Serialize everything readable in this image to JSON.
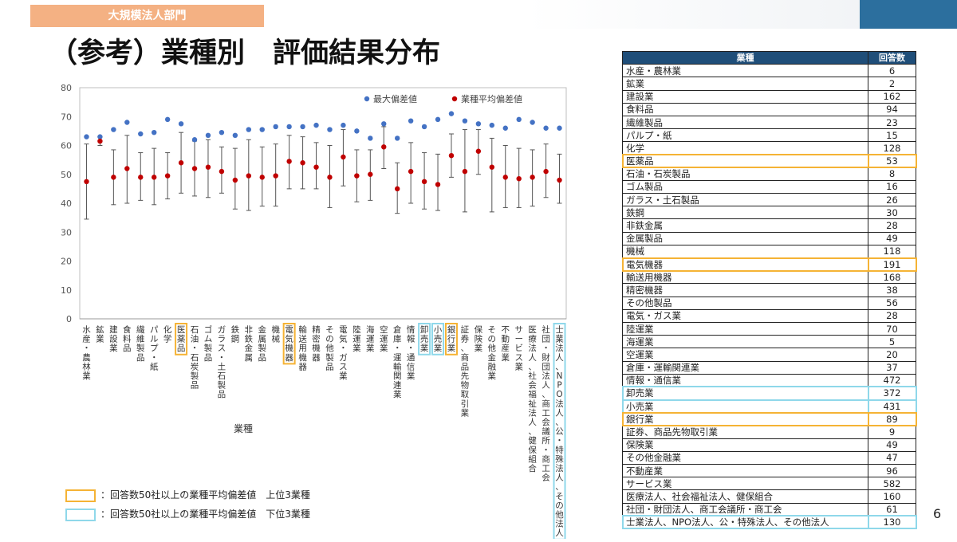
{
  "header": {
    "dept_tag": "大規模法人部門",
    "title": "（参考）業種別　評価結果分布"
  },
  "colors": {
    "max_dot": "#4472c4",
    "avg_dot": "#c00000",
    "orange_box": "#f5b335",
    "blue_box": "#8fd8ea",
    "table_header": "#1f4e79"
  },
  "chart_data": {
    "type": "scatter",
    "title": "",
    "xlabel": "業種",
    "ylabel": "",
    "ylim": [
      0,
      80
    ],
    "yticks": [
      0,
      10,
      20,
      30,
      40,
      50,
      60,
      70,
      80
    ],
    "grid": false,
    "legend_position": "top-right",
    "categories": [
      "水産・農林業",
      "鉱業",
      "建設業",
      "食料品",
      "繊維製品",
      "パルプ・紙",
      "化学",
      "医薬品",
      "石油・石炭製品",
      "ゴム製品",
      "ガラス・土石製品",
      "鉄鋼",
      "非鉄金属",
      "金属製品",
      "機械",
      "電気機器",
      "輸送用機器",
      "精密機器",
      "その他製品",
      "電気・ガス業",
      "陸運業",
      "海運業",
      "空運業",
      "倉庫・運輸関連業",
      "情報・通信業",
      "卸売業",
      "小売業",
      "銀行業",
      "証券、商品先物取引業",
      "保険業",
      "その他金融業",
      "不動産業",
      "サービス業",
      "医療法人、社会福祉法人、健保組合",
      "社団・財団法人、商工会議所・商工会",
      "士業法人、NPO法人、公・特殊法人、その他法人"
    ],
    "series": [
      {
        "name": "最大偏差値",
        "marker": "dot",
        "color": "#4472c4",
        "values": [
          63,
          63,
          65.5,
          68,
          64,
          64.5,
          69,
          67.5,
          62,
          63.5,
          64.5,
          63.5,
          65.5,
          65.5,
          66.5,
          66.5,
          66.5,
          67,
          65.5,
          67,
          65,
          62.5,
          67.5,
          62.5,
          68.5,
          66.5,
          69,
          71,
          68.5,
          67.5,
          67,
          66,
          69,
          68,
          66,
          66
        ]
      },
      {
        "name": "業種平均偏差値",
        "marker": "dot",
        "color": "#c00000",
        "values": [
          47.5,
          61.5,
          49,
          52,
          49,
          49,
          49.5,
          54,
          52,
          52.5,
          51,
          48,
          49.5,
          49,
          49.5,
          54.5,
          54,
          52.5,
          49,
          56,
          49.5,
          50,
          59.5,
          45,
          51,
          47.5,
          46.5,
          56.5,
          51,
          58,
          52.5,
          49,
          48.5,
          49,
          51,
          48
        ]
      },
      {
        "name": "下限",
        "values": [
          34.5,
          60,
          39.5,
          40,
          41,
          39.5,
          41.5,
          43.5,
          42.5,
          42,
          43.5,
          38,
          37.5,
          39,
          39,
          45,
          45,
          45,
          38.5,
          46,
          40.5,
          41,
          52,
          36.5,
          40,
          38,
          37.5,
          49,
          37,
          50,
          37,
          38.5,
          38.5,
          39,
          42,
          40
        ]
      },
      {
        "name": "上限",
        "values": [
          60.5,
          63,
          58.5,
          63.5,
          57.5,
          59,
          57.5,
          64.5,
          61.5,
          62,
          59.5,
          59,
          62,
          59.5,
          60.5,
          63.5,
          63,
          61,
          60,
          65.5,
          58.5,
          58.5,
          66.5,
          54,
          61,
          57.5,
          57,
          64,
          65.5,
          65.5,
          62.5,
          60,
          59,
          58.5,
          60.5,
          57
        ]
      }
    ],
    "highlight_top3": [
      "医薬品",
      "電気機器",
      "銀行業"
    ],
    "highlight_bottom3": [
      "卸売業",
      "小売業",
      "士業法人、NPO法人、公・特殊法人、その他法人"
    ]
  },
  "legend_notes": [
    {
      "text": "：回答数50社以上の業種平均偏差値　上位3業種",
      "style": "orange"
    },
    {
      "text": "：回答数50社以上の業種平均偏差値　下位3業種",
      "style": "blue"
    }
  ],
  "table": {
    "headers": [
      "業種",
      "回答数"
    ],
    "rows": [
      {
        "name": "水産・農林業",
        "count": "6",
        "hl": ""
      },
      {
        "name": "鉱業",
        "count": "2",
        "hl": ""
      },
      {
        "name": "建設業",
        "count": "162",
        "hl": ""
      },
      {
        "name": "食料品",
        "count": "94",
        "hl": ""
      },
      {
        "name": "繊維製品",
        "count": "23",
        "hl": ""
      },
      {
        "name": "パルプ・紙",
        "count": "15",
        "hl": ""
      },
      {
        "name": "化学",
        "count": "128",
        "hl": ""
      },
      {
        "name": "医薬品",
        "count": "53",
        "hl": "orange"
      },
      {
        "name": "石油・石炭製品",
        "count": "8",
        "hl": ""
      },
      {
        "name": "ゴム製品",
        "count": "16",
        "hl": ""
      },
      {
        "name": "ガラス・土石製品",
        "count": "26",
        "hl": ""
      },
      {
        "name": "鉄鋼",
        "count": "30",
        "hl": ""
      },
      {
        "name": "非鉄金属",
        "count": "28",
        "hl": ""
      },
      {
        "name": "金属製品",
        "count": "49",
        "hl": ""
      },
      {
        "name": "機械",
        "count": "118",
        "hl": ""
      },
      {
        "name": "電気機器",
        "count": "191",
        "hl": "orange"
      },
      {
        "name": "輸送用機器",
        "count": "168",
        "hl": ""
      },
      {
        "name": "精密機器",
        "count": "38",
        "hl": ""
      },
      {
        "name": "その他製品",
        "count": "56",
        "hl": ""
      },
      {
        "name": "電気・ガス業",
        "count": "28",
        "hl": ""
      },
      {
        "name": "陸運業",
        "count": "70",
        "hl": ""
      },
      {
        "name": "海運業",
        "count": "5",
        "hl": ""
      },
      {
        "name": "空運業",
        "count": "20",
        "hl": ""
      },
      {
        "name": "倉庫・運輸関連業",
        "count": "37",
        "hl": ""
      },
      {
        "name": "情報・通信業",
        "count": "472",
        "hl": ""
      },
      {
        "name": "卸売業",
        "count": "372",
        "hl": "blue"
      },
      {
        "name": "小売業",
        "count": "431",
        "hl": "blue"
      },
      {
        "name": "銀行業",
        "count": "89",
        "hl": "orange"
      },
      {
        "name": "証券、商品先物取引業",
        "count": "9",
        "hl": ""
      },
      {
        "name": "保険業",
        "count": "49",
        "hl": ""
      },
      {
        "name": "その他金融業",
        "count": "47",
        "hl": ""
      },
      {
        "name": "不動産業",
        "count": "96",
        "hl": ""
      },
      {
        "name": "サービス業",
        "count": "582",
        "hl": ""
      },
      {
        "name": "医療法人、社会福祉法人、健保組合",
        "count": "160",
        "hl": ""
      },
      {
        "name": "社団・財団法人、商工会議所・商工会",
        "count": "61",
        "hl": ""
      },
      {
        "name": "士業法人、NPO法人、公・特殊法人、その他法人",
        "count": "130",
        "hl": "blue"
      }
    ]
  },
  "page_number": "6"
}
